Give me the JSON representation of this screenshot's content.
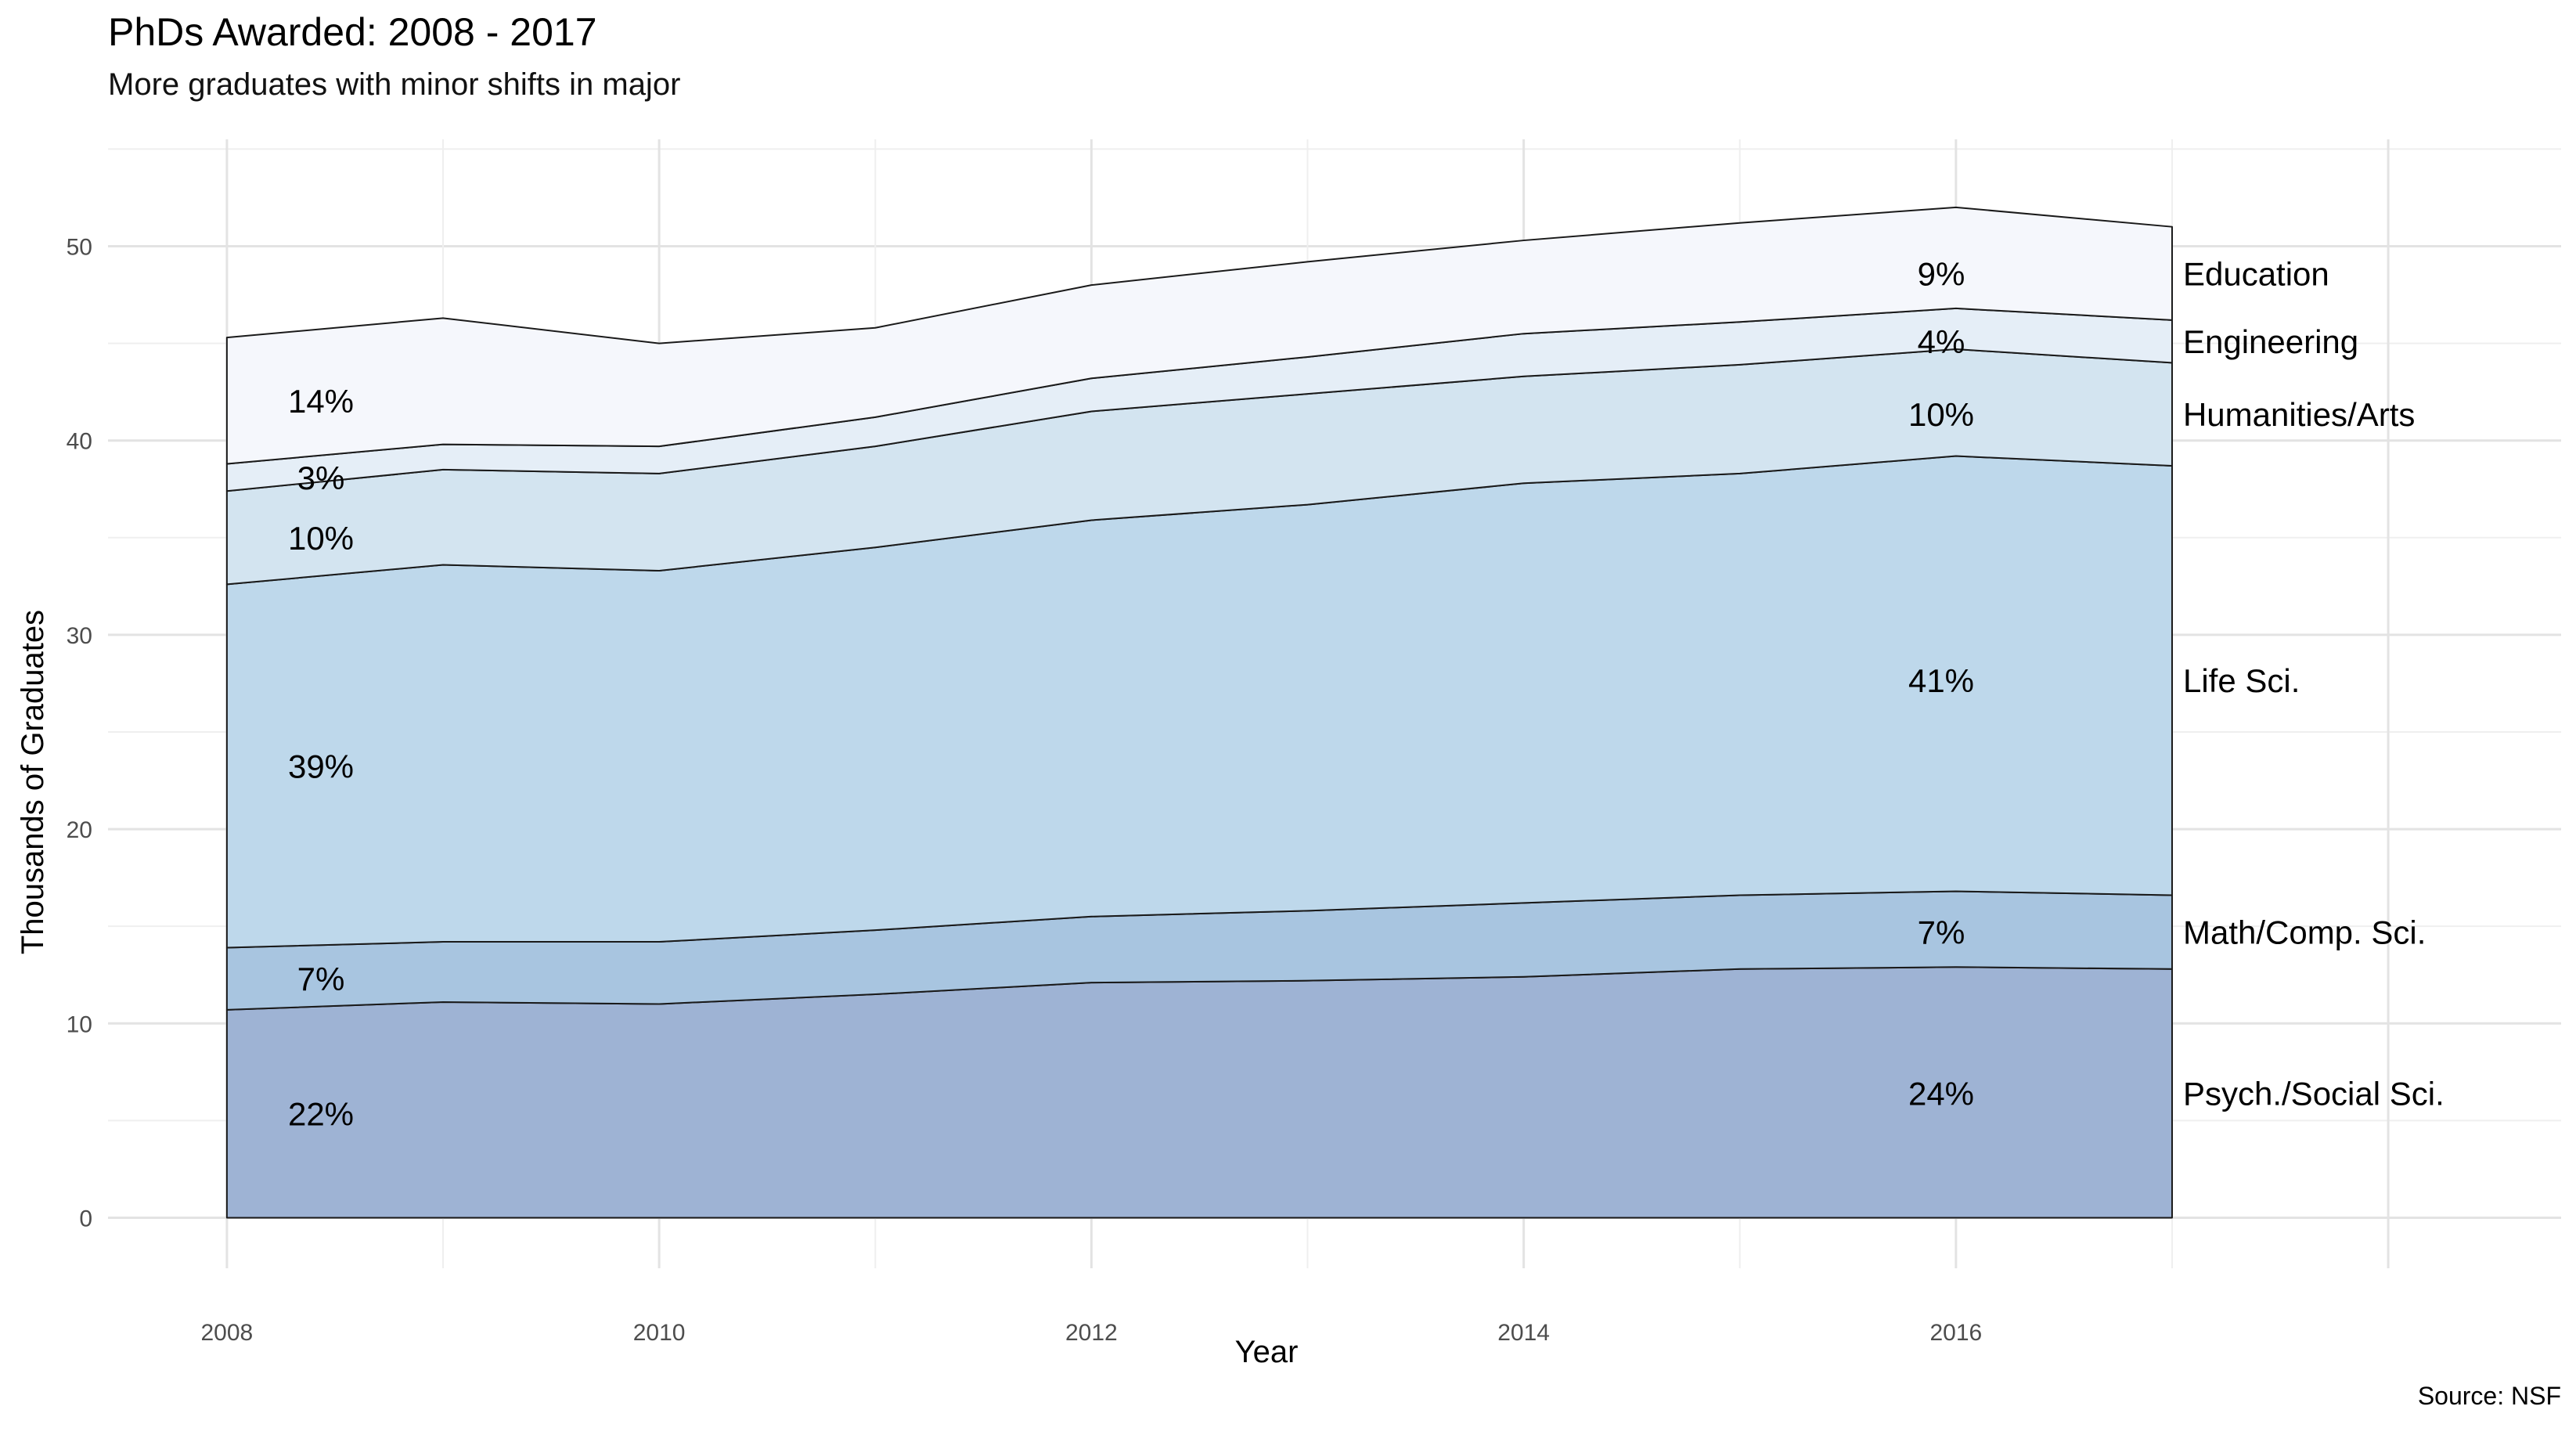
{
  "chart_data": {
    "type": "area",
    "stacked": true,
    "title": "PhDs Awarded: 2008 - 2017",
    "subtitle": "More graduates with minor shifts in major",
    "caption": "Source: NSF",
    "xlabel": "Year",
    "ylabel": "Thousands of Graduates",
    "xlim": [
      2007.45,
      2018.8
    ],
    "ylim": [
      -2.6,
      55.5
    ],
    "x_ticks": [
      2008,
      2010,
      2012,
      2014,
      2016
    ],
    "y_ticks": [
      0,
      10,
      20,
      30,
      40,
      50
    ],
    "grid": true,
    "legend": "direct-labels-right",
    "x": [
      2008,
      2009,
      2010,
      2011,
      2012,
      2013,
      2014,
      2015,
      2016,
      2017
    ],
    "series": [
      {
        "name": "Psych./Social Sci.",
        "color": "#9eb3d4",
        "values": [
          10.7,
          11.1,
          11.0,
          11.5,
          12.1,
          12.2,
          12.4,
          12.8,
          12.9,
          12.8
        ],
        "start_pct": "22%",
        "end_pct": "24%"
      },
      {
        "name": "Math/Comp. Sci.",
        "color": "#a8c5e0",
        "values": [
          3.2,
          3.1,
          3.2,
          3.3,
          3.4,
          3.6,
          3.8,
          3.8,
          3.9,
          3.8
        ],
        "start_pct": "7%",
        "end_pct": "7%"
      },
      {
        "name": "Life Sci.",
        "color": "#bed8eb",
        "values": [
          18.7,
          19.4,
          19.1,
          19.7,
          20.4,
          20.9,
          21.6,
          21.7,
          22.4,
          22.1
        ],
        "start_pct": "39%",
        "end_pct": "41%"
      },
      {
        "name": "Humanities/Arts",
        "color": "#d3e4f0",
        "values": [
          4.8,
          4.9,
          5.0,
          5.2,
          5.6,
          5.7,
          5.5,
          5.6,
          5.5,
          5.3
        ],
        "start_pct": "10%",
        "end_pct": "10%"
      },
      {
        "name": "Engineering",
        "color": "#e5eef7",
        "values": [
          1.4,
          1.3,
          1.4,
          1.5,
          1.7,
          1.9,
          2.2,
          2.2,
          2.1,
          2.2
        ],
        "start_pct": "3%",
        "end_pct": "4%"
      },
      {
        "name": "Education",
        "color": "#f5f7fc",
        "values": [
          6.5,
          6.5,
          5.3,
          4.6,
          4.8,
          4.9,
          4.8,
          5.1,
          5.2,
          4.8
        ],
        "start_pct": "14%",
        "end_pct": "9%"
      }
    ]
  }
}
